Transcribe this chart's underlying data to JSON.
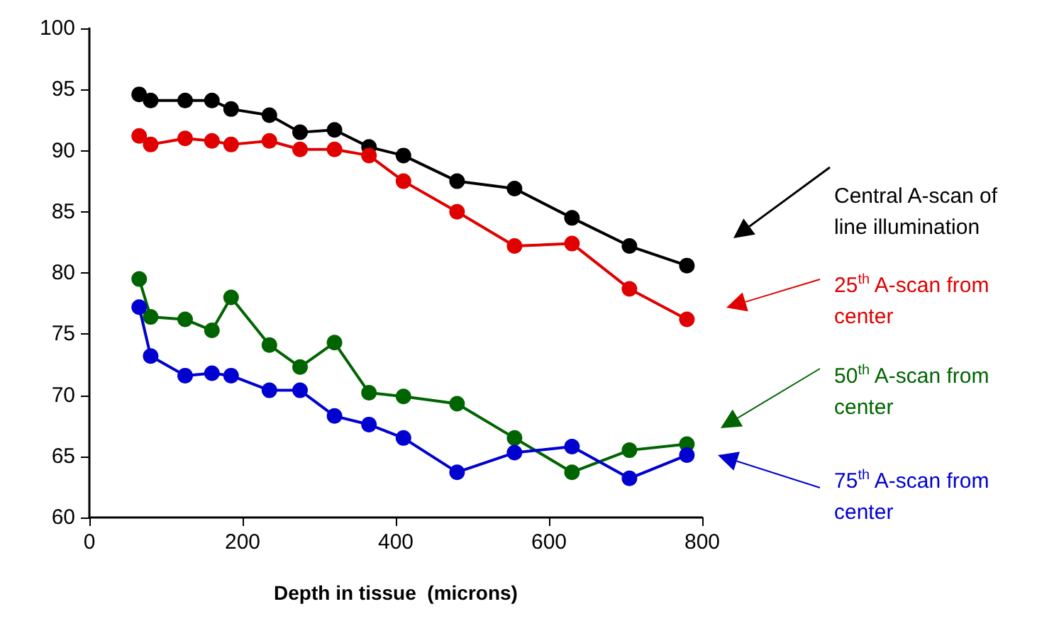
{
  "chart_data": {
    "type": "line",
    "xlabel": "Depth in tissue  (microns)",
    "x": [
      65,
      80,
      125,
      160,
      185,
      235,
      275,
      320,
      365,
      410,
      480,
      555,
      630,
      705,
      780
    ],
    "xlim": [
      0,
      800
    ],
    "xticks": [
      0,
      200,
      400,
      600,
      800
    ],
    "ylim": [
      60,
      100
    ],
    "yticks": [
      60,
      65,
      70,
      75,
      80,
      85,
      90,
      95,
      100
    ],
    "grid": false,
    "legend": "right",
    "marker": "circle",
    "line_style": "solid",
    "series": [
      {
        "name": "Central A-scan of line illumination",
        "color": "#000000",
        "values": [
          94.6,
          94.1,
          94.1,
          94.1,
          93.4,
          92.9,
          91.5,
          91.7,
          90.3,
          89.6,
          87.5,
          86.9,
          84.5,
          82.2,
          80.6
        ]
      },
      {
        "name": "25$^{th}$ A-scan from center",
        "color": "#e00000",
        "values": [
          91.2,
          90.5,
          91.0,
          90.8,
          90.5,
          90.8,
          90.1,
          90.1,
          89.6,
          87.5,
          85.0,
          82.2,
          82.4,
          78.7,
          76.2
        ]
      },
      {
        "name": "50$^{th}$ A-scan from center",
        "color": "#006400",
        "values": [
          79.5,
          76.4,
          76.2,
          75.3,
          78.0,
          74.1,
          72.3,
          74.3,
          70.2,
          69.9,
          69.3,
          66.5,
          63.7,
          65.5,
          66.0
        ]
      },
      {
        "name": "75$^{th}$ A-scan from center",
        "color": "#0000d0",
        "values": [
          77.2,
          73.2,
          71.6,
          71.8,
          71.6,
          70.4,
          70.4,
          68.3,
          67.6,
          66.5,
          63.7,
          65.3,
          65.8,
          63.2,
          65.1
        ]
      }
    ]
  }
}
